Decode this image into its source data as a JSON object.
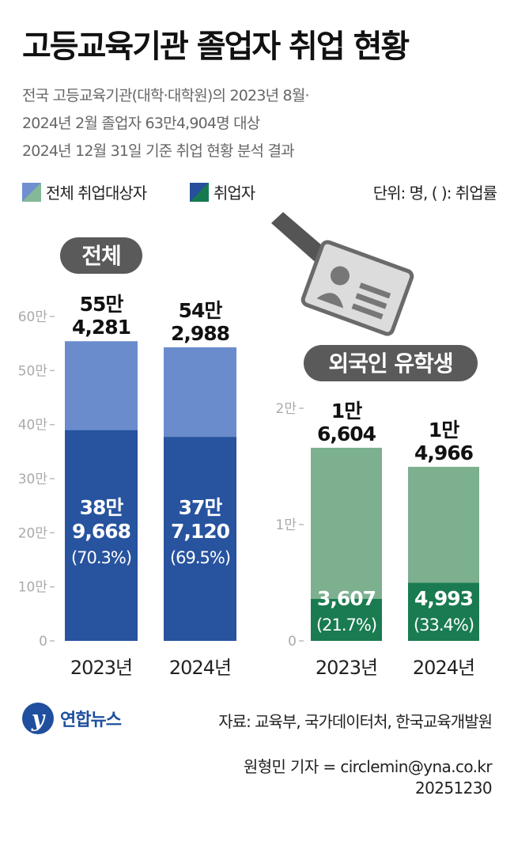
{
  "title": "고등교육기관 졸업자 취업 현황",
  "subtitle": [
    "전국 고등교육기관(대학·대학원)의 2023년 8월·",
    "2024년 2월 졸업자 63만4,904명 대상",
    "2024년 12월 31일 기준 취업 현황 분석 결과"
  ],
  "legend": {
    "total_label": "전체 취업대상자",
    "employed_label": "취업자",
    "unit_note": "단위: 명, (   ): 취업률"
  },
  "colors": {
    "all_total": "#6a8ccc",
    "all_employed": "#27539f",
    "foreign_total": "#7db08f",
    "foreign_employed": "#1a7b50"
  },
  "chart_data": [
    {
      "type": "bar",
      "title": "전체",
      "categories": [
        "2023년",
        "2024년"
      ],
      "y_ticks": [
        "0",
        "10만",
        "20만",
        "30만",
        "40만",
        "50만",
        "60만"
      ],
      "ylim": [
        0,
        600000
      ],
      "series": [
        {
          "name": "전체 취업대상자",
          "values": [
            554281,
            542988
          ],
          "labels": [
            [
              "55만",
              "4,281"
            ],
            [
              "54만",
              "2,988"
            ]
          ]
        },
        {
          "name": "취업자",
          "values": [
            389668,
            377120
          ],
          "labels": [
            [
              "38만",
              "9,668"
            ],
            [
              "37만",
              "7,120"
            ]
          ],
          "rates": [
            "(70.3%)",
            "(69.5%)"
          ]
        }
      ]
    },
    {
      "type": "bar",
      "title": "외국인 유학생",
      "categories": [
        "2023년",
        "2024년"
      ],
      "y_ticks": [
        "0",
        "1만",
        "2만"
      ],
      "ylim": [
        0,
        20000
      ],
      "series": [
        {
          "name": "전체 취업대상자",
          "values": [
            16604,
            14966
          ],
          "labels": [
            [
              "1만",
              "6,604"
            ],
            [
              "1만",
              "4,966"
            ]
          ]
        },
        {
          "name": "취업자",
          "values": [
            3607,
            4993
          ],
          "labels": [
            [
              "3,607"
            ],
            [
              "4,993"
            ]
          ],
          "rates": [
            "(21.7%)",
            "(33.4%)"
          ]
        }
      ]
    }
  ],
  "footer": {
    "logo": "연합뉴스",
    "source": "자료: 교육부, 국가데이터처, 한국교육개발원",
    "credit": "원형민 기자 = circlemin@yna.co.kr",
    "date": "20251230"
  }
}
